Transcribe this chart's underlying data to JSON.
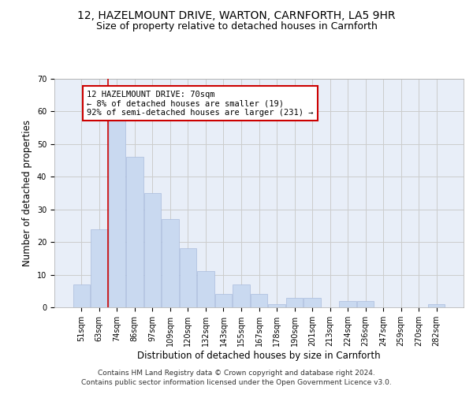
{
  "title": "12, HAZELMOUNT DRIVE, WARTON, CARNFORTH, LA5 9HR",
  "subtitle": "Size of property relative to detached houses in Carnforth",
  "xlabel": "Distribution of detached houses by size in Carnforth",
  "ylabel": "Number of detached properties",
  "categories": [
    "51sqm",
    "63sqm",
    "74sqm",
    "86sqm",
    "97sqm",
    "109sqm",
    "120sqm",
    "132sqm",
    "143sqm",
    "155sqm",
    "167sqm",
    "178sqm",
    "190sqm",
    "201sqm",
    "213sqm",
    "224sqm",
    "236sqm",
    "247sqm",
    "259sqm",
    "270sqm",
    "282sqm"
  ],
  "values": [
    7,
    24,
    58,
    46,
    35,
    27,
    18,
    11,
    4,
    7,
    4,
    1,
    3,
    3,
    0,
    2,
    2,
    0,
    0,
    0,
    1
  ],
  "bar_color": "#c9d9f0",
  "bar_edge_color": "#aabbdd",
  "vline_x_index": 2,
  "vline_color": "#cc0000",
  "annotation_text": "12 HAZELMOUNT DRIVE: 70sqm\n← 8% of detached houses are smaller (19)\n92% of semi-detached houses are larger (231) →",
  "annotation_box_color": "#ffffff",
  "annotation_box_edgecolor": "#cc0000",
  "ylim": [
    0,
    70
  ],
  "yticks": [
    0,
    10,
    20,
    30,
    40,
    50,
    60,
    70
  ],
  "grid_color": "#cccccc",
  "bg_color": "#e8eef8",
  "footer": "Contains HM Land Registry data © Crown copyright and database right 2024.\nContains public sector information licensed under the Open Government Licence v3.0.",
  "title_fontsize": 10,
  "subtitle_fontsize": 9,
  "xlabel_fontsize": 8.5,
  "ylabel_fontsize": 8.5,
  "tick_fontsize": 7,
  "footer_fontsize": 6.5,
  "annotation_fontsize": 7.5
}
